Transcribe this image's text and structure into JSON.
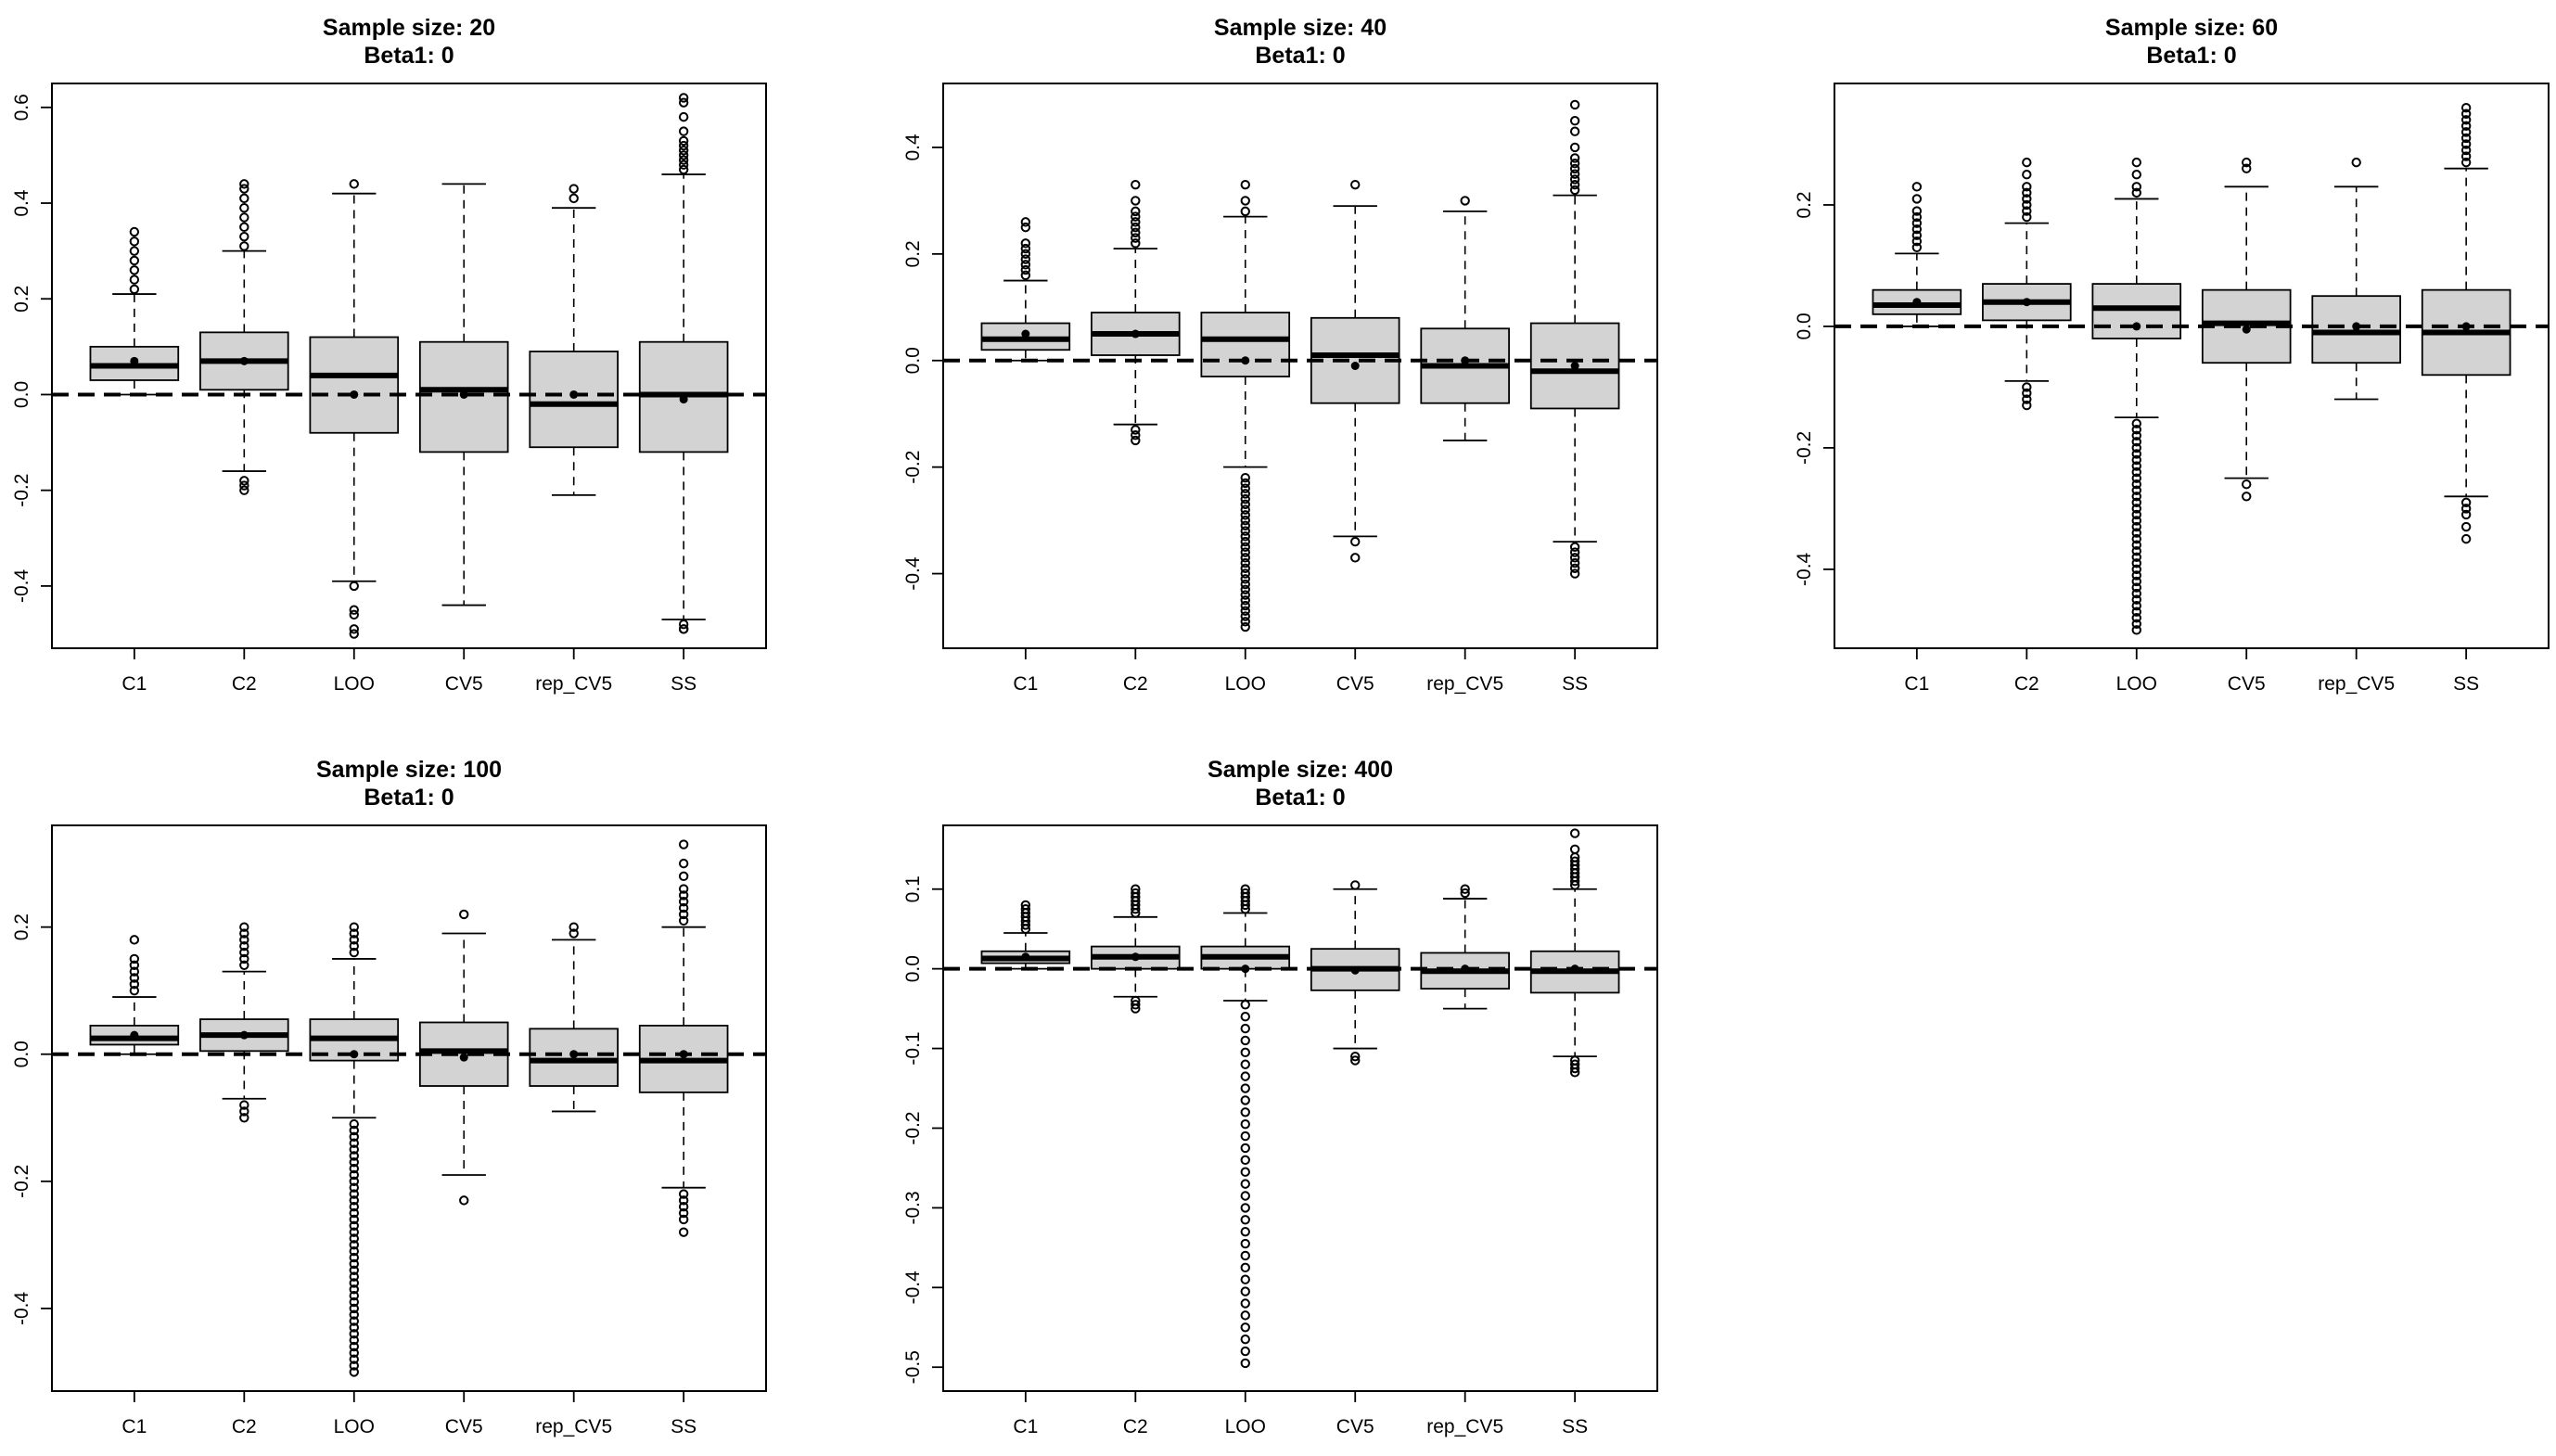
{
  "figure": {
    "categories": [
      "C1",
      "C2",
      "LOO",
      "CV5",
      "rep_CV5",
      "SS"
    ],
    "reference_line_y": 0
  },
  "colors": {
    "box_fill": "#d3d3d3",
    "stroke": "#000000",
    "background": "#ffffff"
  },
  "chart_data": [
    {
      "type": "boxplot",
      "title": "Sample size: 20",
      "subtitle": "Beta1: 0",
      "xlabel": "",
      "ylabel": "",
      "categories": [
        "C1",
        "C2",
        "LOO",
        "CV5",
        "rep_CV5",
        "SS"
      ],
      "ylim": [
        -0.53,
        0.65
      ],
      "yticks": [
        -0.4,
        -0.2,
        0.0,
        0.2,
        0.4,
        0.6
      ],
      "ytick_labels": [
        "-0.4",
        "-0.2",
        "0.0",
        "0.2",
        "0.4",
        "0.6"
      ],
      "hline": 0,
      "boxes": [
        {
          "name": "C1",
          "whisker_low": 0.0,
          "q1": 0.03,
          "median": 0.06,
          "q3": 0.1,
          "whisker_high": 0.21,
          "mean": 0.07,
          "outliers_high": [
            0.22,
            0.24,
            0.26,
            0.28,
            0.3,
            0.32,
            0.34
          ],
          "outliers_low": []
        },
        {
          "name": "C2",
          "whisker_low": -0.16,
          "q1": 0.01,
          "median": 0.07,
          "q3": 0.13,
          "whisker_high": 0.3,
          "mean": 0.07,
          "outliers_high": [
            0.31,
            0.33,
            0.35,
            0.37,
            0.39,
            0.41,
            0.43,
            0.44
          ],
          "outliers_low": [
            -0.18,
            -0.19,
            -0.2
          ]
        },
        {
          "name": "LOO",
          "whisker_low": -0.39,
          "q1": -0.08,
          "median": 0.04,
          "q3": 0.12,
          "whisker_high": 0.42,
          "mean": 0.0,
          "outliers_high": [
            0.44
          ],
          "outliers_low": [
            -0.4,
            -0.45,
            -0.46,
            -0.49,
            -0.5
          ]
        },
        {
          "name": "CV5",
          "whisker_low": -0.44,
          "q1": -0.12,
          "median": 0.01,
          "q3": 0.11,
          "whisker_high": 0.44,
          "mean": 0.0,
          "outliers_high": [],
          "outliers_low": []
        },
        {
          "name": "rep_CV5",
          "whisker_low": -0.21,
          "q1": -0.11,
          "median": -0.02,
          "q3": 0.09,
          "whisker_high": 0.39,
          "mean": 0.0,
          "outliers_high": [
            0.41,
            0.43
          ],
          "outliers_low": []
        },
        {
          "name": "SS",
          "whisker_low": -0.47,
          "q1": -0.12,
          "median": 0.0,
          "q3": 0.11,
          "whisker_high": 0.46,
          "mean": -0.01,
          "outliers_high": [
            0.47,
            0.48,
            0.49,
            0.5,
            0.51,
            0.52,
            0.53,
            0.55,
            0.58,
            0.61,
            0.62
          ],
          "outliers_low": [
            -0.48,
            -0.49,
            -0.49
          ]
        }
      ]
    },
    {
      "type": "boxplot",
      "title": "Sample size: 40",
      "subtitle": "Beta1: 0",
      "xlabel": "",
      "ylabel": "",
      "categories": [
        "C1",
        "C2",
        "LOO",
        "CV5",
        "rep_CV5",
        "SS"
      ],
      "ylim": [
        -0.54,
        0.52
      ],
      "yticks": [
        -0.4,
        -0.2,
        0.0,
        0.2,
        0.4
      ],
      "ytick_labels": [
        "-0.4",
        "-0.2",
        "0.0",
        "0.2",
        "0.4"
      ],
      "hline": 0,
      "boxes": [
        {
          "name": "C1",
          "whisker_low": 0.0,
          "q1": 0.02,
          "median": 0.04,
          "q3": 0.07,
          "whisker_high": 0.15,
          "mean": 0.05,
          "outliers_high": [
            0.16,
            0.17,
            0.18,
            0.19,
            0.2,
            0.21,
            0.22,
            0.25,
            0.26
          ],
          "outliers_low": []
        },
        {
          "name": "C2",
          "whisker_low": -0.12,
          "q1": 0.01,
          "median": 0.05,
          "q3": 0.09,
          "whisker_high": 0.21,
          "mean": 0.05,
          "outliers_high": [
            0.22,
            0.23,
            0.24,
            0.25,
            0.26,
            0.27,
            0.28,
            0.3,
            0.33
          ],
          "outliers_low": [
            -0.13,
            -0.14,
            -0.15
          ]
        },
        {
          "name": "LOO",
          "whisker_low": -0.2,
          "q1": -0.03,
          "median": 0.04,
          "q3": 0.09,
          "whisker_high": 0.27,
          "mean": 0.0,
          "outliers_high": [
            0.28,
            0.3,
            0.33
          ],
          "outliers_low": [
            -0.22,
            -0.23,
            -0.24,
            -0.25,
            -0.26,
            -0.27,
            -0.28,
            -0.29,
            -0.3,
            -0.31,
            -0.32,
            -0.33,
            -0.34,
            -0.35,
            -0.36,
            -0.37,
            -0.38,
            -0.39,
            -0.4,
            -0.41,
            -0.42,
            -0.43,
            -0.44,
            -0.45,
            -0.46,
            -0.47,
            -0.48,
            -0.49,
            -0.5
          ]
        },
        {
          "name": "CV5",
          "whisker_low": -0.33,
          "q1": -0.08,
          "median": 0.01,
          "q3": 0.08,
          "whisker_high": 0.29,
          "mean": -0.01,
          "outliers_high": [
            0.33
          ],
          "outliers_low": [
            -0.34,
            -0.37
          ]
        },
        {
          "name": "rep_CV5",
          "whisker_low": -0.15,
          "q1": -0.08,
          "median": -0.01,
          "q3": 0.06,
          "whisker_high": 0.28,
          "mean": 0.0,
          "outliers_high": [
            0.3
          ],
          "outliers_low": []
        },
        {
          "name": "SS",
          "whisker_low": -0.34,
          "q1": -0.09,
          "median": -0.02,
          "q3": 0.07,
          "whisker_high": 0.31,
          "mean": -0.01,
          "outliers_high": [
            0.32,
            0.33,
            0.34,
            0.35,
            0.36,
            0.37,
            0.38,
            0.4,
            0.43,
            0.45,
            0.48
          ],
          "outliers_low": [
            -0.35,
            -0.36,
            -0.37,
            -0.38,
            -0.39,
            -0.4
          ]
        }
      ]
    },
    {
      "type": "boxplot",
      "title": "Sample size: 60",
      "subtitle": "Beta1: 0",
      "xlabel": "",
      "ylabel": "",
      "categories": [
        "C1",
        "C2",
        "LOO",
        "CV5",
        "rep_CV5",
        "SS"
      ],
      "ylim": [
        -0.53,
        0.4
      ],
      "yticks": [
        -0.4,
        -0.2,
        0.0,
        0.2
      ],
      "ytick_labels": [
        "-0.4",
        "-0.2",
        "0.0",
        "0.2"
      ],
      "hline": 0,
      "boxes": [
        {
          "name": "C1",
          "whisker_low": 0.0,
          "q1": 0.02,
          "median": 0.035,
          "q3": 0.06,
          "whisker_high": 0.12,
          "mean": 0.04,
          "outliers_high": [
            0.13,
            0.14,
            0.15,
            0.16,
            0.17,
            0.18,
            0.19,
            0.21,
            0.23
          ],
          "outliers_low": []
        },
        {
          "name": "C2",
          "whisker_low": -0.09,
          "q1": 0.01,
          "median": 0.04,
          "q3": 0.07,
          "whisker_high": 0.17,
          "mean": 0.04,
          "outliers_high": [
            0.18,
            0.19,
            0.2,
            0.21,
            0.22,
            0.23,
            0.25,
            0.27
          ],
          "outliers_low": [
            -0.1,
            -0.11,
            -0.12,
            -0.13
          ]
        },
        {
          "name": "LOO",
          "whisker_low": -0.15,
          "q1": -0.02,
          "median": 0.03,
          "q3": 0.07,
          "whisker_high": 0.21,
          "mean": 0.0,
          "outliers_high": [
            0.22,
            0.23,
            0.25,
            0.27
          ],
          "outliers_low": [
            -0.16,
            -0.17,
            -0.18,
            -0.19,
            -0.2,
            -0.21,
            -0.22,
            -0.23,
            -0.24,
            -0.25,
            -0.26,
            -0.27,
            -0.28,
            -0.29,
            -0.3,
            -0.31,
            -0.32,
            -0.33,
            -0.34,
            -0.35,
            -0.36,
            -0.37,
            -0.38,
            -0.39,
            -0.4,
            -0.41,
            -0.42,
            -0.43,
            -0.44,
            -0.45,
            -0.46,
            -0.47,
            -0.48,
            -0.49,
            -0.5
          ]
        },
        {
          "name": "CV5",
          "whisker_low": -0.25,
          "q1": -0.06,
          "median": 0.005,
          "q3": 0.06,
          "whisker_high": 0.23,
          "mean": -0.005,
          "outliers_high": [
            0.26,
            0.27
          ],
          "outliers_low": [
            -0.26,
            -0.28
          ]
        },
        {
          "name": "rep_CV5",
          "whisker_low": -0.12,
          "q1": -0.06,
          "median": -0.01,
          "q3": 0.05,
          "whisker_high": 0.23,
          "mean": 0.0,
          "outliers_high": [
            0.27
          ],
          "outliers_low": []
        },
        {
          "name": "SS",
          "whisker_low": -0.28,
          "q1": -0.08,
          "median": -0.01,
          "q3": 0.06,
          "whisker_high": 0.26,
          "mean": 0.0,
          "outliers_high": [
            0.27,
            0.28,
            0.29,
            0.3,
            0.31,
            0.32,
            0.33,
            0.34,
            0.35,
            0.36
          ],
          "outliers_low": [
            -0.29,
            -0.3,
            -0.31,
            -0.33,
            -0.35
          ]
        }
      ]
    },
    {
      "type": "boxplot",
      "title": "Sample size: 100",
      "subtitle": "Beta1: 0",
      "xlabel": "",
      "ylabel": "",
      "categories": [
        "C1",
        "C2",
        "LOO",
        "CV5",
        "rep_CV5",
        "SS"
      ],
      "ylim": [
        -0.53,
        0.36
      ],
      "yticks": [
        -0.4,
        -0.2,
        0.0,
        0.2
      ],
      "ytick_labels": [
        "-0.4",
        "-0.2",
        "0.0",
        "0.2"
      ],
      "hline": 0,
      "boxes": [
        {
          "name": "C1",
          "whisker_low": 0.0,
          "q1": 0.015,
          "median": 0.025,
          "q3": 0.045,
          "whisker_high": 0.09,
          "mean": 0.03,
          "outliers_high": [
            0.1,
            0.11,
            0.12,
            0.13,
            0.14,
            0.15,
            0.18
          ],
          "outliers_low": []
        },
        {
          "name": "C2",
          "whisker_low": -0.07,
          "q1": 0.005,
          "median": 0.03,
          "q3": 0.055,
          "whisker_high": 0.13,
          "mean": 0.03,
          "outliers_high": [
            0.14,
            0.15,
            0.16,
            0.17,
            0.18,
            0.19,
            0.2
          ],
          "outliers_low": [
            -0.08,
            -0.09,
            -0.1
          ]
        },
        {
          "name": "LOO",
          "whisker_low": -0.1,
          "q1": -0.01,
          "median": 0.025,
          "q3": 0.055,
          "whisker_high": 0.15,
          "mean": 0.0,
          "outliers_high": [
            0.16,
            0.17,
            0.18,
            0.19,
            0.2
          ],
          "outliers_low": [
            -0.11,
            -0.12,
            -0.13,
            -0.14,
            -0.15,
            -0.16,
            -0.17,
            -0.18,
            -0.19,
            -0.2,
            -0.21,
            -0.22,
            -0.23,
            -0.24,
            -0.25,
            -0.26,
            -0.27,
            -0.28,
            -0.29,
            -0.3,
            -0.31,
            -0.32,
            -0.33,
            -0.34,
            -0.35,
            -0.36,
            -0.37,
            -0.38,
            -0.39,
            -0.4,
            -0.41,
            -0.42,
            -0.43,
            -0.44,
            -0.45,
            -0.46,
            -0.47,
            -0.48,
            -0.49,
            -0.5
          ]
        },
        {
          "name": "CV5",
          "whisker_low": -0.19,
          "q1": -0.05,
          "median": 0.005,
          "q3": 0.05,
          "whisker_high": 0.19,
          "mean": -0.005,
          "outliers_high": [
            0.22
          ],
          "outliers_low": [
            -0.23
          ]
        },
        {
          "name": "rep_CV5",
          "whisker_low": -0.09,
          "q1": -0.05,
          "median": -0.01,
          "q3": 0.04,
          "whisker_high": 0.18,
          "mean": 0.0,
          "outliers_high": [
            0.19,
            0.2
          ],
          "outliers_low": []
        },
        {
          "name": "SS",
          "whisker_low": -0.21,
          "q1": -0.06,
          "median": -0.01,
          "q3": 0.045,
          "whisker_high": 0.2,
          "mean": 0.0,
          "outliers_high": [
            0.21,
            0.22,
            0.23,
            0.24,
            0.25,
            0.26,
            0.28,
            0.3,
            0.33
          ],
          "outliers_low": [
            -0.22,
            -0.23,
            -0.24,
            -0.25,
            -0.26,
            -0.28
          ]
        }
      ]
    },
    {
      "type": "boxplot",
      "title": "Sample size: 400",
      "subtitle": "Beta1: 0",
      "xlabel": "",
      "ylabel": "",
      "categories": [
        "C1",
        "C2",
        "LOO",
        "CV5",
        "rep_CV5",
        "SS"
      ],
      "ylim": [
        -0.53,
        0.18
      ],
      "yticks": [
        -0.5,
        -0.4,
        -0.3,
        -0.2,
        -0.1,
        0.0,
        0.1
      ],
      "ytick_labels": [
        "-0.5",
        "-0.4",
        "-0.3",
        "-0.2",
        "-0.1",
        "0.0",
        "0.1"
      ],
      "hline": 0,
      "boxes": [
        {
          "name": "C1",
          "whisker_low": 0.0,
          "q1": 0.007,
          "median": 0.013,
          "q3": 0.022,
          "whisker_high": 0.045,
          "mean": 0.015,
          "outliers_high": [
            0.05,
            0.055,
            0.06,
            0.065,
            0.07,
            0.075,
            0.08
          ],
          "outliers_low": []
        },
        {
          "name": "C2",
          "whisker_low": -0.035,
          "q1": 0.0,
          "median": 0.015,
          "q3": 0.028,
          "whisker_high": 0.065,
          "mean": 0.015,
          "outliers_high": [
            0.07,
            0.075,
            0.08,
            0.085,
            0.09,
            0.095,
            0.1
          ],
          "outliers_low": [
            -0.04,
            -0.045,
            -0.05
          ]
        },
        {
          "name": "LOO",
          "whisker_low": -0.04,
          "q1": 0.0,
          "median": 0.015,
          "q3": 0.028,
          "whisker_high": 0.07,
          "mean": 0.0,
          "outliers_high": [
            0.075,
            0.08,
            0.085,
            0.09,
            0.095,
            0.1
          ],
          "outliers_low": [
            -0.045,
            -0.06,
            -0.075,
            -0.09,
            -0.105,
            -0.12,
            -0.135,
            -0.15,
            -0.165,
            -0.18,
            -0.195,
            -0.21,
            -0.225,
            -0.24,
            -0.255,
            -0.27,
            -0.285,
            -0.3,
            -0.315,
            -0.33,
            -0.345,
            -0.36,
            -0.375,
            -0.39,
            -0.405,
            -0.42,
            -0.435,
            -0.45,
            -0.465,
            -0.48,
            -0.495
          ]
        },
        {
          "name": "CV5",
          "whisker_low": -0.1,
          "q1": -0.027,
          "median": 0.0,
          "q3": 0.025,
          "whisker_high": 0.1,
          "mean": -0.002,
          "outliers_high": [
            0.105
          ],
          "outliers_low": [
            -0.11,
            -0.115
          ]
        },
        {
          "name": "rep_CV5",
          "whisker_low": -0.05,
          "q1": -0.025,
          "median": -0.003,
          "q3": 0.02,
          "whisker_high": 0.088,
          "mean": 0.0,
          "outliers_high": [
            0.095,
            0.1
          ],
          "outliers_low": []
        },
        {
          "name": "SS",
          "whisker_low": -0.11,
          "q1": -0.03,
          "median": -0.003,
          "q3": 0.022,
          "whisker_high": 0.1,
          "mean": 0.0,
          "outliers_high": [
            0.105,
            0.11,
            0.115,
            0.12,
            0.125,
            0.13,
            0.135,
            0.14,
            0.15,
            0.17
          ],
          "outliers_low": [
            -0.115,
            -0.12,
            -0.125,
            -0.13
          ]
        }
      ]
    }
  ]
}
